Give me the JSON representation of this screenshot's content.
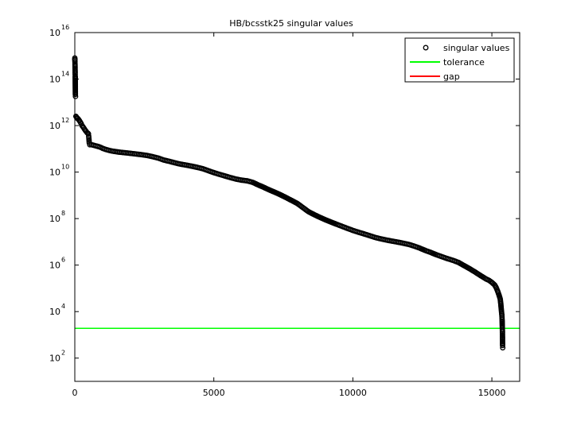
{
  "chart_data": {
    "type": "scatter",
    "title": "HB/bcsstk25 singular values",
    "xlabel": "",
    "ylabel": "",
    "x_scale": "linear",
    "y_scale": "log",
    "xlim": [
      0,
      16000
    ],
    "ylim": [
      10.0,
      1e+16
    ],
    "x_ticks": [
      {
        "value": 0,
        "label": "0"
      },
      {
        "value": 5000,
        "label": "5000"
      },
      {
        "value": 10000,
        "label": "10000"
      },
      {
        "value": 15000,
        "label": "15000"
      }
    ],
    "y_ticks": [
      {
        "value": 100.0,
        "base": "10",
        "exp": "2"
      },
      {
        "value": 10000.0,
        "base": "10",
        "exp": "4"
      },
      {
        "value": 1000000.0,
        "base": "10",
        "exp": "6"
      },
      {
        "value": 100000000.0,
        "base": "10",
        "exp": "8"
      },
      {
        "value": 10000000000.0,
        "base": "10",
        "exp": "10"
      },
      {
        "value": 1000000000000.0,
        "base": "10",
        "exp": "12"
      },
      {
        "value": 100000000000000.0,
        "base": "10",
        "exp": "14"
      },
      {
        "value": 1e+16,
        "base": "10",
        "exp": "16"
      }
    ],
    "grid": false,
    "legend_position": "top-right",
    "legend": [
      {
        "label": "singular values",
        "marker": "circle",
        "color": "#000000"
      },
      {
        "label": "tolerance",
        "marker": "line",
        "color": "#00ff00"
      },
      {
        "label": "gap",
        "marker": "line",
        "color": "#ff0000"
      }
    ],
    "series": [
      {
        "name": "singular values",
        "color": "#000000",
        "marker": "circle",
        "points": [
          [
            1,
            800000000000000.0
          ],
          [
            2,
            700000000000000.0
          ],
          [
            3,
            650000000000000.0
          ],
          [
            5,
            550000000000000.0
          ],
          [
            7,
            450000000000000.0
          ],
          [
            9,
            350000000000000.0
          ],
          [
            11,
            250000000000000.0
          ],
          [
            13,
            160000000000000.0
          ],
          [
            15,
            130000000000000.0
          ],
          [
            20,
            22000000000000.0
          ],
          [
            25,
            18000000000000.0
          ],
          [
            40,
            2500000000000.0
          ],
          [
            60,
            2300000000000.0
          ],
          [
            80,
            2100000000000.0
          ],
          [
            110,
            2000000000000.0
          ],
          [
            140,
            1800000000000.0
          ],
          [
            170,
            1600000000000.0
          ],
          [
            200,
            1400000000000.0
          ],
          [
            230,
            1200000000000.0
          ],
          [
            260,
            1000000000000.0
          ],
          [
            290,
            900000000000.0
          ],
          [
            320,
            800000000000.0
          ],
          [
            350,
            700000000000.0
          ],
          [
            380,
            620000000000.0
          ],
          [
            410,
            560000000000.0
          ],
          [
            440,
            500000000000.0
          ],
          [
            470,
            470000000000.0
          ],
          [
            490,
            440000000000.0
          ],
          [
            500,
            350000000000.0
          ],
          [
            510,
            250000000000.0
          ],
          [
            520,
            180000000000.0
          ],
          [
            540,
            150000000000.0
          ],
          [
            600,
            150000000000.0
          ],
          [
            700,
            140000000000.0
          ],
          [
            800,
            130000000000.0
          ],
          [
            900,
            120000000000.0
          ],
          [
            1000,
            105000000000.0
          ],
          [
            1100,
            95000000000.0
          ],
          [
            1200,
            88000000000.0
          ],
          [
            1300,
            82000000000.0
          ],
          [
            1400,
            78000000000.0
          ],
          [
            1500,
            75000000000.0
          ],
          [
            1600,
            72000000000.0
          ],
          [
            1700,
            70000000000.0
          ],
          [
            1800,
            68000000000.0
          ],
          [
            1900,
            66000000000.0
          ],
          [
            2000,
            64000000000.0
          ],
          [
            2200,
            60000000000.0
          ],
          [
            2400,
            56000000000.0
          ],
          [
            2600,
            52000000000.0
          ],
          [
            2800,
            46000000000.0
          ],
          [
            3000,
            40000000000.0
          ],
          [
            3200,
            33000000000.0
          ],
          [
            3400,
            29000000000.0
          ],
          [
            3600,
            25000000000.0
          ],
          [
            3800,
            22000000000.0
          ],
          [
            4000,
            20000000000.0
          ],
          [
            4200,
            18000000000.0
          ],
          [
            4400,
            16000000000.0
          ],
          [
            4600,
            14000000000.0
          ],
          [
            4800,
            11500000000.0
          ],
          [
            5000,
            9500000000.0
          ],
          [
            5200,
            8000000000.0
          ],
          [
            5400,
            6800000000.0
          ],
          [
            5600,
            5800000000.0
          ],
          [
            5800,
            5000000000.0
          ],
          [
            6000,
            4500000000.0
          ],
          [
            6200,
            4200000000.0
          ],
          [
            6400,
            3600000000.0
          ],
          [
            6600,
            2800000000.0
          ],
          [
            6800,
            2200000000.0
          ],
          [
            7000,
            1700000000.0
          ],
          [
            7200,
            1350000000.0
          ],
          [
            7400,
            1050000000.0
          ],
          [
            7600,
            800000000.0
          ],
          [
            7800,
            600000000.0
          ],
          [
            8000,
            450000000.0
          ],
          [
            8200,
            300000000.0
          ],
          [
            8400,
            200000000.0
          ],
          [
            8600,
            150000000.0
          ],
          [
            8800,
            115000000.0
          ],
          [
            9000,
            90000000.0
          ],
          [
            9200,
            72000000.0
          ],
          [
            9400,
            58000000.0
          ],
          [
            9600,
            47000000.0
          ],
          [
            9800,
            38000000.0
          ],
          [
            10000,
            31000000.0
          ],
          [
            10200,
            26000000.0
          ],
          [
            10400,
            22000000.0
          ],
          [
            10600,
            18500000.0
          ],
          [
            10800,
            15500000.0
          ],
          [
            11000,
            13500000.0
          ],
          [
            11200,
            12000000.0
          ],
          [
            11400,
            10800000.0
          ],
          [
            11600,
            9800000.0
          ],
          [
            11800,
            8800000.0
          ],
          [
            12000,
            7800000.0
          ],
          [
            12200,
            6600000.0
          ],
          [
            12400,
            5400000.0
          ],
          [
            12600,
            4300000.0
          ],
          [
            12800,
            3500000.0
          ],
          [
            13000,
            2800000.0
          ],
          [
            13200,
            2300000.0
          ],
          [
            13400,
            1900000.0
          ],
          [
            13600,
            1600000.0
          ],
          [
            13800,
            1300000.0
          ],
          [
            14000,
            950000.0
          ],
          [
            14200,
            700000.0
          ],
          [
            14400,
            500000.0
          ],
          [
            14600,
            350000.0
          ],
          [
            14800,
            250000.0
          ],
          [
            14900,
            220000.0
          ],
          [
            15000,
            180000.0
          ],
          [
            15100,
            140000.0
          ],
          [
            15150,
            110000.0
          ],
          [
            15200,
            80000.0
          ],
          [
            15250,
            55000.0
          ],
          [
            15300,
            35000.0
          ],
          [
            15320,
            22000.0
          ],
          [
            15340,
            12000.0
          ],
          [
            15360,
            7000.0
          ],
          [
            15370,
            4000.0
          ],
          [
            15375,
            2200.0
          ],
          [
            15380,
            1400.0
          ],
          [
            15385,
            350.0
          ],
          [
            15390,
            280.0
          ]
        ]
      },
      {
        "name": "tolerance",
        "color": "#00ff00",
        "marker": "line",
        "y": 1900.0,
        "x_range": [
          0,
          16000
        ]
      }
    ]
  }
}
